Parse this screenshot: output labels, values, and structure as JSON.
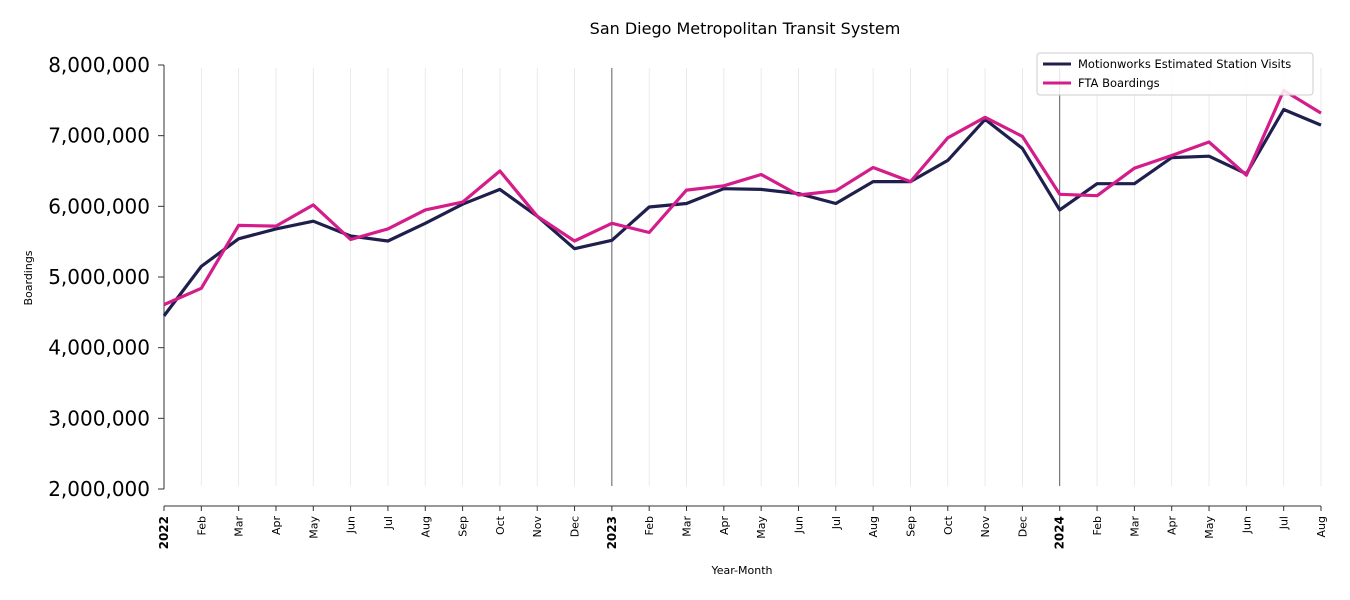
{
  "chart_data": {
    "type": "line",
    "title": "San Diego Metropolitan Transit System",
    "xlabel": "Year-Month",
    "ylabel": "Boardings",
    "ylim": [
      2000000,
      8000000
    ],
    "yticks": [
      "2,000,000",
      "3,000,000",
      "4,000,000",
      "5,000,000",
      "6,000,000",
      "7,000,000",
      "8,000,000"
    ],
    "ytick_values": [
      2000000,
      3000000,
      4000000,
      5000000,
      6000000,
      7000000,
      8000000
    ],
    "categories": [
      "2022",
      "Feb",
      "Mar",
      "Apr",
      "May",
      "Jun",
      "Jul",
      "Aug",
      "Sep",
      "Oct",
      "Nov",
      "Dec",
      "2023",
      "Feb",
      "Mar",
      "Apr",
      "May",
      "Jun",
      "Jul",
      "Aug",
      "Sep",
      "Oct",
      "Nov",
      "Dec",
      "2024",
      "Feb",
      "Mar",
      "Apr",
      "May",
      "Jun",
      "Jul",
      "Aug"
    ],
    "year_indices": [
      0,
      12,
      24
    ],
    "series": [
      {
        "name": "Motionworks Estimated Station Visits",
        "color": "#1f1f4e",
        "values": [
          4450000,
          5150000,
          5540000,
          5680000,
          5790000,
          5580000,
          5510000,
          5760000,
          6030000,
          6240000,
          5860000,
          5400000,
          5520000,
          5990000,
          6040000,
          6250000,
          6240000,
          6180000,
          6040000,
          6350000,
          6350000,
          6650000,
          7230000,
          6820000,
          5950000,
          6320000,
          6320000,
          6690000,
          6710000,
          6460000,
          7370000,
          7150000
        ]
      },
      {
        "name": "FTA Boardings",
        "color": "#d41c8a",
        "values": [
          4610000,
          4840000,
          5730000,
          5720000,
          6020000,
          5530000,
          5680000,
          5950000,
          6060000,
          6500000,
          5860000,
          5510000,
          5760000,
          5630000,
          6230000,
          6290000,
          6450000,
          6160000,
          6220000,
          6550000,
          6350000,
          6970000,
          7260000,
          6990000,
          6170000,
          6150000,
          6540000,
          6720000,
          6910000,
          6440000,
          7640000,
          7320000
        ]
      }
    ],
    "grid": "vertical",
    "legend": "top-right"
  }
}
